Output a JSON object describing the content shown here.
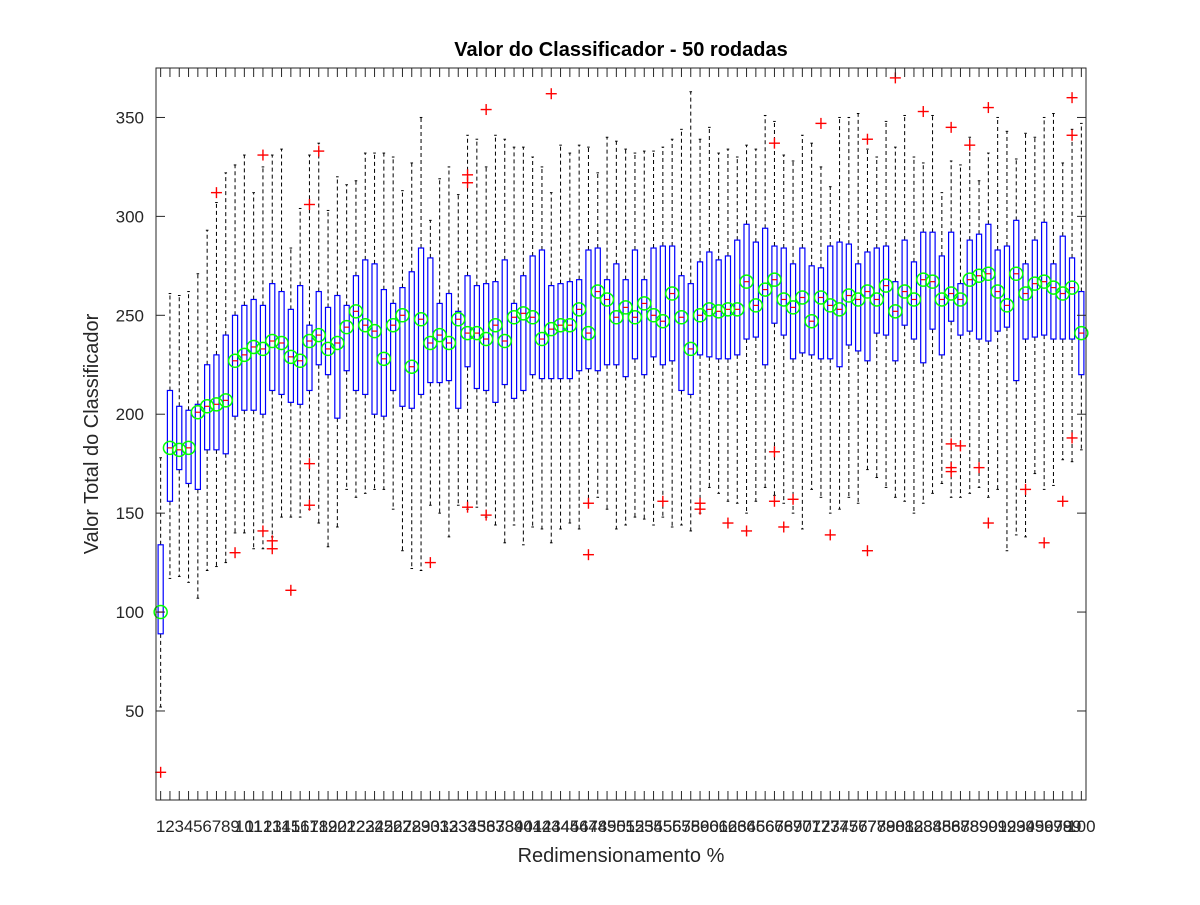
{
  "chart_data": {
    "type": "box",
    "title": "Valor do Classificador - 50 rodadas",
    "xlabel": "Redimensionamento %",
    "ylabel": "Valor Total do Classificador",
    "xlim": [
      0.5,
      100.5
    ],
    "ylim": [
      5,
      375
    ],
    "yticks": [
      50,
      100,
      150,
      200,
      250,
      300,
      350
    ],
    "x": [
      1,
      2,
      3,
      4,
      5,
      6,
      7,
      8,
      9,
      10,
      11,
      12,
      13,
      14,
      15,
      16,
      17,
      18,
      19,
      20,
      21,
      22,
      23,
      24,
      25,
      26,
      27,
      28,
      29,
      30,
      31,
      32,
      33,
      34,
      35,
      36,
      37,
      38,
      39,
      40,
      41,
      42,
      43,
      44,
      45,
      46,
      47,
      48,
      49,
      50,
      51,
      52,
      53,
      54,
      55,
      56,
      57,
      58,
      59,
      60,
      61,
      62,
      63,
      64,
      65,
      66,
      67,
      68,
      69,
      70,
      71,
      72,
      73,
      74,
      75,
      76,
      77,
      78,
      79,
      80,
      81,
      82,
      83,
      84,
      85,
      86,
      87,
      88,
      89,
      90,
      91,
      92,
      93,
      94,
      95,
      96,
      97,
      98,
      99,
      100
    ],
    "x_tick_labels": [
      "1",
      "2",
      "3",
      "4",
      "5",
      "6",
      "7",
      "8",
      "9",
      "10",
      "11",
      "12",
      "13",
      "14",
      "15",
      "16",
      "17",
      "18",
      "19",
      "20",
      "21",
      "22",
      "23",
      "24",
      "25",
      "26",
      "27",
      "28",
      "29",
      "30",
      "31",
      "32",
      "33",
      "34",
      "35",
      "36",
      "37",
      "38",
      "39",
      "40",
      "41",
      "42",
      "43",
      "44",
      "45",
      "46",
      "47",
      "48",
      "49",
      "50",
      "51",
      "52",
      "53",
      "54",
      "55",
      "56",
      "57",
      "58",
      "59",
      "60",
      "61",
      "62",
      "63",
      "64",
      "65",
      "66",
      "67",
      "68",
      "69",
      "70",
      "71",
      "72",
      "73",
      "74",
      "75",
      "76",
      "77",
      "78",
      "79",
      "80",
      "81",
      "82",
      "83",
      "84",
      "85",
      "86",
      "87",
      "88",
      "89",
      "90",
      "91",
      "92",
      "93",
      "94",
      "95",
      "96",
      "97",
      "98",
      "99",
      "100"
    ],
    "q1": [
      89,
      156,
      172,
      165,
      162,
      182,
      182,
      180,
      199,
      202,
      202,
      200,
      212,
      210,
      206,
      205,
      212,
      225,
      220,
      198,
      222,
      212,
      210,
      200,
      199,
      212,
      204,
      203,
      210,
      216,
      216,
      217,
      203,
      224,
      213,
      212,
      206,
      215,
      208,
      212,
      220,
      218,
      218,
      218,
      218,
      222,
      223,
      222,
      225,
      225,
      219,
      228,
      220,
      229,
      225,
      227,
      212,
      210,
      230,
      229,
      228,
      228,
      230,
      238,
      239,
      225,
      246,
      240,
      228,
      231,
      230,
      228,
      228,
      224,
      235,
      232,
      227,
      241,
      240,
      227,
      245,
      238,
      226,
      243,
      230,
      247,
      240,
      242,
      238,
      237,
      242,
      244,
      217,
      238,
      239,
      240,
      238,
      238,
      238,
      220
    ],
    "median": [
      100,
      183,
      182,
      183,
      201,
      204,
      205,
      207,
      227,
      230,
      234,
      233,
      237,
      236,
      229,
      227,
      237,
      240,
      233,
      236,
      244,
      252,
      245,
      242,
      228,
      245,
      250,
      224,
      248,
      236,
      240,
      236,
      248,
      241,
      241,
      238,
      245,
      237,
      249,
      251,
      249,
      238,
      243,
      245,
      245,
      253,
      241,
      262,
      258,
      249,
      254,
      249,
      256,
      250,
      247,
      261,
      249,
      233,
      250,
      253,
      252,
      253,
      253,
      267,
      255,
      263,
      268,
      258,
      254,
      259,
      247,
      259,
      255,
      253,
      260,
      258,
      262,
      258,
      265,
      252,
      262,
      258,
      268,
      267,
      258,
      261,
      258,
      268,
      270,
      271,
      262,
      255,
      271,
      261,
      266,
      267,
      264,
      261,
      264,
      241
    ],
    "q3": [
      134,
      212,
      204,
      202,
      205,
      225,
      230,
      240,
      250,
      255,
      258,
      255,
      266,
      262,
      253,
      265,
      245,
      262,
      254,
      260,
      255,
      270,
      278,
      276,
      263,
      256,
      264,
      272,
      284,
      279,
      256,
      261,
      252,
      270,
      265,
      266,
      267,
      278,
      256,
      270,
      280,
      283,
      265,
      266,
      267,
      268,
      283,
      284,
      268,
      276,
      268,
      283,
      268,
      284,
      285,
      285,
      270,
      266,
      277,
      282,
      278,
      280,
      288,
      296,
      287,
      294,
      285,
      284,
      276,
      284,
      275,
      274,
      285,
      287,
      286,
      276,
      282,
      284,
      285,
      267,
      288,
      277,
      292,
      292,
      280,
      292,
      266,
      288,
      291,
      296,
      283,
      285,
      298,
      276,
      288,
      297,
      276,
      290,
      279,
      262
    ],
    "whisker_low": [
      52,
      117,
      118,
      115,
      107,
      121,
      123,
      125,
      140,
      140,
      132,
      132,
      138,
      148,
      148,
      148,
      152,
      145,
      133,
      143,
      162,
      158,
      160,
      162,
      162,
      152,
      131,
      122,
      121,
      154,
      150,
      138,
      154,
      152,
      153,
      148,
      144,
      135,
      144,
      134,
      143,
      142,
      135,
      142,
      145,
      142,
      155,
      158,
      152,
      142,
      144,
      148,
      147,
      144,
      148,
      143,
      144,
      141,
      150,
      163,
      160,
      156,
      155,
      150,
      156,
      163,
      159,
      155,
      150,
      142,
      162,
      158,
      150,
      152,
      158,
      155,
      172,
      168,
      163,
      158,
      156,
      150,
      155,
      160,
      165,
      158,
      158,
      160,
      163,
      158,
      162,
      131,
      139,
      138,
      170,
      162,
      164,
      177,
      176,
      182
    ],
    "whisker_high": [
      178,
      261,
      260,
      262,
      271,
      293,
      307,
      322,
      326,
      331,
      312,
      325,
      331,
      334,
      284,
      304,
      331,
      337,
      303,
      320,
      316,
      318,
      332,
      332,
      332,
      330,
      313,
      327,
      350,
      298,
      319,
      325,
      311,
      341,
      339,
      325,
      341,
      339,
      335,
      335,
      330,
      325,
      312,
      336,
      332,
      336,
      335,
      322,
      340,
      338,
      334,
      332,
      333,
      333,
      335,
      339,
      344,
      363,
      339,
      345,
      332,
      334,
      330,
      336,
      334,
      351,
      348,
      331,
      328,
      341,
      337,
      325,
      315,
      350,
      350,
      352,
      334,
      330,
      348,
      335,
      351,
      330,
      327,
      351,
      312,
      328,
      326,
      340,
      318,
      332,
      350,
      343,
      329,
      342,
      340,
      350,
      352,
      327,
      344,
      347
    ],
    "outliers": [
      {
        "x": 1,
        "y": 19
      },
      {
        "x": 7,
        "y": 312
      },
      {
        "x": 9,
        "y": 130
      },
      {
        "x": 12,
        "y": 331
      },
      {
        "x": 12,
        "y": 141
      },
      {
        "x": 13,
        "y": 136
      },
      {
        "x": 13,
        "y": 132
      },
      {
        "x": 15,
        "y": 111
      },
      {
        "x": 17,
        "y": 306
      },
      {
        "x": 17,
        "y": 175
      },
      {
        "x": 17,
        "y": 154
      },
      {
        "x": 18,
        "y": 333
      },
      {
        "x": 30,
        "y": 125
      },
      {
        "x": 34,
        "y": 321
      },
      {
        "x": 34,
        "y": 317
      },
      {
        "x": 34,
        "y": 153
      },
      {
        "x": 36,
        "y": 354
      },
      {
        "x": 36,
        "y": 149
      },
      {
        "x": 43,
        "y": 362
      },
      {
        "x": 47,
        "y": 155
      },
      {
        "x": 47,
        "y": 129
      },
      {
        "x": 55,
        "y": 156
      },
      {
        "x": 59,
        "y": 155
      },
      {
        "x": 59,
        "y": 152
      },
      {
        "x": 62,
        "y": 145
      },
      {
        "x": 64,
        "y": 141
      },
      {
        "x": 67,
        "y": 337
      },
      {
        "x": 67,
        "y": 181
      },
      {
        "x": 67,
        "y": 156
      },
      {
        "x": 68,
        "y": 143
      },
      {
        "x": 69,
        "y": 157
      },
      {
        "x": 72,
        "y": 347
      },
      {
        "x": 73,
        "y": 139
      },
      {
        "x": 77,
        "y": 339
      },
      {
        "x": 77,
        "y": 131
      },
      {
        "x": 80,
        "y": 370
      },
      {
        "x": 83,
        "y": 353
      },
      {
        "x": 86,
        "y": 345
      },
      {
        "x": 86,
        "y": 185
      },
      {
        "x": 86,
        "y": 173
      },
      {
        "x": 86,
        "y": 171
      },
      {
        "x": 87,
        "y": 184
      },
      {
        "x": 88,
        "y": 336
      },
      {
        "x": 89,
        "y": 173
      },
      {
        "x": 90,
        "y": 355
      },
      {
        "x": 90,
        "y": 145
      },
      {
        "x": 94,
        "y": 162
      },
      {
        "x": 96,
        "y": 135
      },
      {
        "x": 98,
        "y": 156
      },
      {
        "x": 99,
        "y": 360
      },
      {
        "x": 99,
        "y": 341
      },
      {
        "x": 99,
        "y": 188
      }
    ],
    "box_color": "#0000ff",
    "median_color": "#ff0000",
    "whisker_color": "#000000",
    "outlier_color": "#ff0000",
    "outlier_marker": "+",
    "circle_color": "#00ff00",
    "grid": false,
    "legend": "none"
  }
}
